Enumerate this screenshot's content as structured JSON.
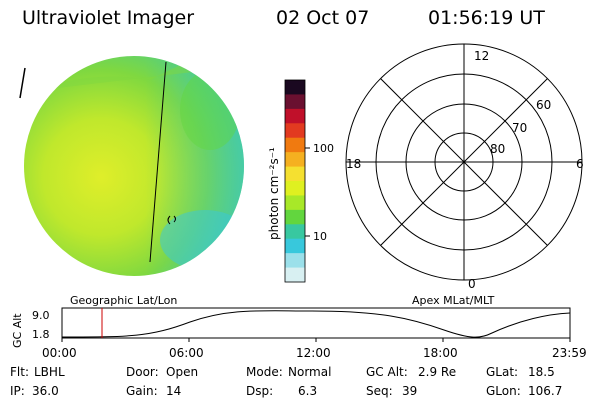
{
  "header": {
    "title": "Ultraviolet Imager",
    "date": "02 Oct 07",
    "time": "01:56:19 UT"
  },
  "colorbar": {
    "label": "photon cm⁻²s⁻¹",
    "ticks": [
      "100",
      "10"
    ],
    "colors": [
      "#1a0820",
      "#6a1030",
      "#c0102a",
      "#e23a20",
      "#f07a10",
      "#f5b020",
      "#f5e030",
      "#dff020",
      "#a8e828",
      "#62d63e",
      "#38c8a0",
      "#38c8dc",
      "#9be0ea",
      "#d8f0f2"
    ]
  },
  "polar_plot": {
    "mlt_labels": [
      "12",
      "18",
      "6",
      "0"
    ],
    "lat_labels": [
      "60",
      "70",
      "80"
    ]
  },
  "labels": {
    "geographic": "Geographic Lat/Lon",
    "apex": "Apex MLat/MLT"
  },
  "altitude_panel": {
    "ylabel": "GC Alt",
    "yticks": [
      "9.0",
      "1.8"
    ],
    "xticks": [
      "00:00",
      "06:00",
      "12:00",
      "18:00",
      "23:59"
    ]
  },
  "info": {
    "row1": [
      {
        "label": "Flt:",
        "value": "LBHL"
      },
      {
        "label": "Door:",
        "value": "Open"
      },
      {
        "label": "Mode:",
        "value": "Normal"
      },
      {
        "label": "GC Alt:",
        "value": "2.9 Re"
      },
      {
        "label": "GLat:",
        "value": "18.5"
      }
    ],
    "row2": [
      {
        "label": "IP:",
        "value": "36.0"
      },
      {
        "label": "Gain:",
        "value": "14"
      },
      {
        "label": "Dsp:",
        "value": "6.3"
      },
      {
        "label": "Seq:",
        "value": "39"
      },
      {
        "label": "GLon:",
        "value": "106.7"
      }
    ]
  }
}
